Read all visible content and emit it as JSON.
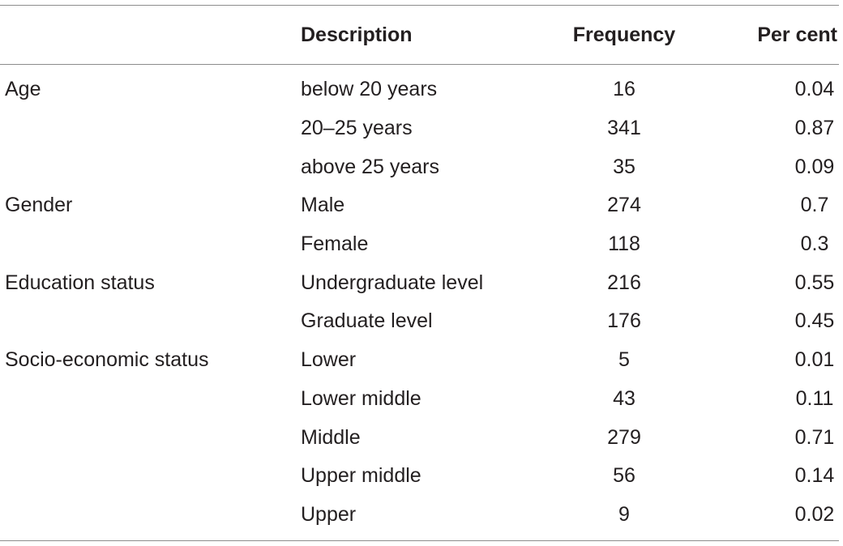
{
  "table": {
    "headers": {
      "group": "",
      "description": "Description",
      "frequency": "Frequency",
      "percent": "Per cent"
    },
    "rows": [
      {
        "group": "Age",
        "description": "below 20 years",
        "frequency": "16",
        "percent": "0.04"
      },
      {
        "group": "",
        "description": "20–25 years",
        "frequency": "341",
        "percent": "0.87"
      },
      {
        "group": "",
        "description": "above 25 years",
        "frequency": "35",
        "percent": "0.09"
      },
      {
        "group": "Gender",
        "description": "Male",
        "frequency": "274",
        "percent": "0.7"
      },
      {
        "group": "",
        "description": "Female",
        "frequency": "118",
        "percent": "0.3"
      },
      {
        "group": "Education status",
        "description": "Undergraduate level",
        "frequency": "216",
        "percent": "0.55"
      },
      {
        "group": "",
        "description": "Graduate level",
        "frequency": "176",
        "percent": "0.45"
      },
      {
        "group": "Socio-economic status",
        "description": "Lower",
        "frequency": "5",
        "percent": "0.01"
      },
      {
        "group": "",
        "description": "Lower middle",
        "frequency": "43",
        "percent": "0.11"
      },
      {
        "group": "",
        "description": "Middle",
        "frequency": "279",
        "percent": "0.71"
      },
      {
        "group": "",
        "description": "Upper middle",
        "frequency": "56",
        "percent": "0.14"
      },
      {
        "group": "",
        "description": "Upper",
        "frequency": "9",
        "percent": "0.02"
      }
    ]
  }
}
